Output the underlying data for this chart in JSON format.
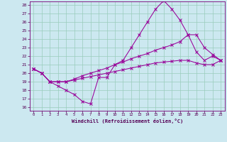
{
  "xlabel": "Windchill (Refroidissement éolien,°C)",
  "xticks": [
    0,
    1,
    2,
    3,
    4,
    5,
    6,
    7,
    8,
    9,
    10,
    11,
    12,
    13,
    14,
    15,
    16,
    17,
    18,
    19,
    20,
    21,
    22,
    23
  ],
  "yticks": [
    16,
    17,
    18,
    19,
    20,
    21,
    22,
    23,
    24,
    25,
    26,
    27,
    28
  ],
  "xlim": [
    -0.5,
    23.5
  ],
  "ylim": [
    15.6,
    28.4
  ],
  "bg_color": "#cce8f0",
  "grid_color": "#99ccbb",
  "line_color": "#990099",
  "curve1_x": [
    0,
    1,
    2,
    3,
    4,
    5,
    6,
    7,
    8,
    9,
    10,
    11,
    12,
    13,
    14,
    15,
    16,
    17,
    18,
    19,
    20,
    21,
    22,
    23
  ],
  "curve1_y": [
    20.5,
    20.0,
    19.0,
    18.5,
    18.0,
    17.5,
    16.7,
    16.4,
    19.5,
    19.5,
    21.0,
    21.5,
    23.0,
    24.5,
    26.0,
    27.5,
    28.5,
    27.5,
    26.2,
    24.5,
    22.5,
    21.5,
    22.0,
    21.5
  ],
  "curve2_x": [
    0,
    1,
    2,
    3,
    4,
    5,
    6,
    7,
    8,
    9,
    10,
    11,
    12,
    13,
    14,
    15,
    16,
    17,
    18,
    19,
    20,
    21,
    22,
    23
  ],
  "curve2_y": [
    20.5,
    20.0,
    19.0,
    19.0,
    19.0,
    19.3,
    19.7,
    20.0,
    20.3,
    20.6,
    21.0,
    21.3,
    21.7,
    22.0,
    22.3,
    22.7,
    23.0,
    23.3,
    23.7,
    24.5,
    24.5,
    23.0,
    22.2,
    21.5
  ],
  "curve3_x": [
    0,
    1,
    2,
    3,
    4,
    5,
    6,
    7,
    8,
    9,
    10,
    11,
    12,
    13,
    14,
    15,
    16,
    17,
    18,
    19,
    20,
    21,
    22,
    23
  ],
  "curve3_y": [
    20.5,
    20.0,
    19.0,
    19.0,
    19.0,
    19.2,
    19.4,
    19.6,
    19.8,
    20.0,
    20.2,
    20.4,
    20.6,
    20.8,
    21.0,
    21.2,
    21.3,
    21.4,
    21.5,
    21.5,
    21.2,
    21.0,
    21.0,
    21.5
  ]
}
